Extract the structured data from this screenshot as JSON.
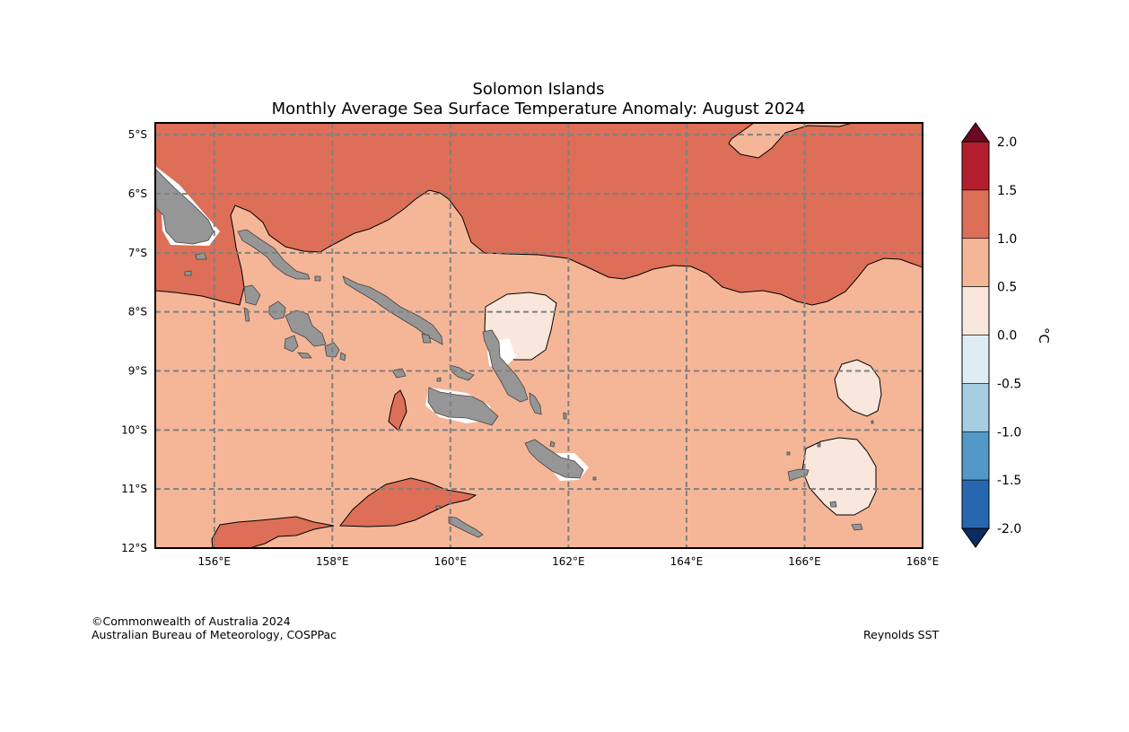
{
  "title": {
    "line1": "Solomon Islands",
    "line2": "Monthly Average Sea Surface Temperature Anomaly: August 2024"
  },
  "map": {
    "lon_range": [
      155,
      168
    ],
    "lat_range": [
      -4.8,
      -12
    ],
    "lat_ticks": [
      {
        "value": -5,
        "label": "5°S"
      },
      {
        "value": -6,
        "label": "6°S"
      },
      {
        "value": -7,
        "label": "7°S"
      },
      {
        "value": -8,
        "label": "8°S"
      },
      {
        "value": -9,
        "label": "9°S"
      },
      {
        "value": -10,
        "label": "10°S"
      },
      {
        "value": -11,
        "label": "11°S"
      },
      {
        "value": -12,
        "label": "12°S"
      }
    ],
    "lon_ticks": [
      {
        "value": 156,
        "label": "156°E"
      },
      {
        "value": 158,
        "label": "158°E"
      },
      {
        "value": 160,
        "label": "160°E"
      },
      {
        "value": 162,
        "label": "162°E"
      },
      {
        "value": 164,
        "label": "164°E"
      },
      {
        "value": 166,
        "label": "166°E"
      },
      {
        "value": 168,
        "label": "168°E"
      }
    ],
    "grid": "dashed"
  },
  "colorbar": {
    "unit": "°C",
    "labels": [
      "2.0",
      "1.5",
      "1.0",
      "0.5",
      "0.0",
      "-0.5",
      "-1.0",
      "-1.5",
      "-2.0"
    ],
    "bands": [
      {
        "range": "1.5 to 2.0",
        "color": "#b41f2f"
      },
      {
        "range": "1.0 to 1.5",
        "color": "#dd6e57"
      },
      {
        "range": "0.5 to 1.0",
        "color": "#f5b698"
      },
      {
        "range": "0.0 to 0.5",
        "color": "#f9e6dc"
      },
      {
        "range": "-0.5 to 0.0",
        "color": "#dfecf3"
      },
      {
        "range": "-1.0 to -0.5",
        "color": "#a5cee3"
      },
      {
        "range": "-1.5 to -1.0",
        "color": "#5399c8"
      },
      {
        "range": "-2.0 to -1.5",
        "color": "#2767b0"
      }
    ],
    "top_extend_color": "#6a0a22",
    "bottom_extend_color": "#0b2c5e"
  },
  "colors": {
    "anomaly_1_0_to_1_5": "#dd6e57",
    "anomaly_0_5_to_1_0": "#f5b698",
    "anomaly_0_0_to_0_5": "#f9e6dc",
    "land": "#969696",
    "grid": "#808080"
  },
  "footer": {
    "copyright": "©Commonwealth of Australia 2024",
    "agency": "Australian Bureau of Meteorology, COSPPac",
    "source": "Reynolds SST"
  }
}
